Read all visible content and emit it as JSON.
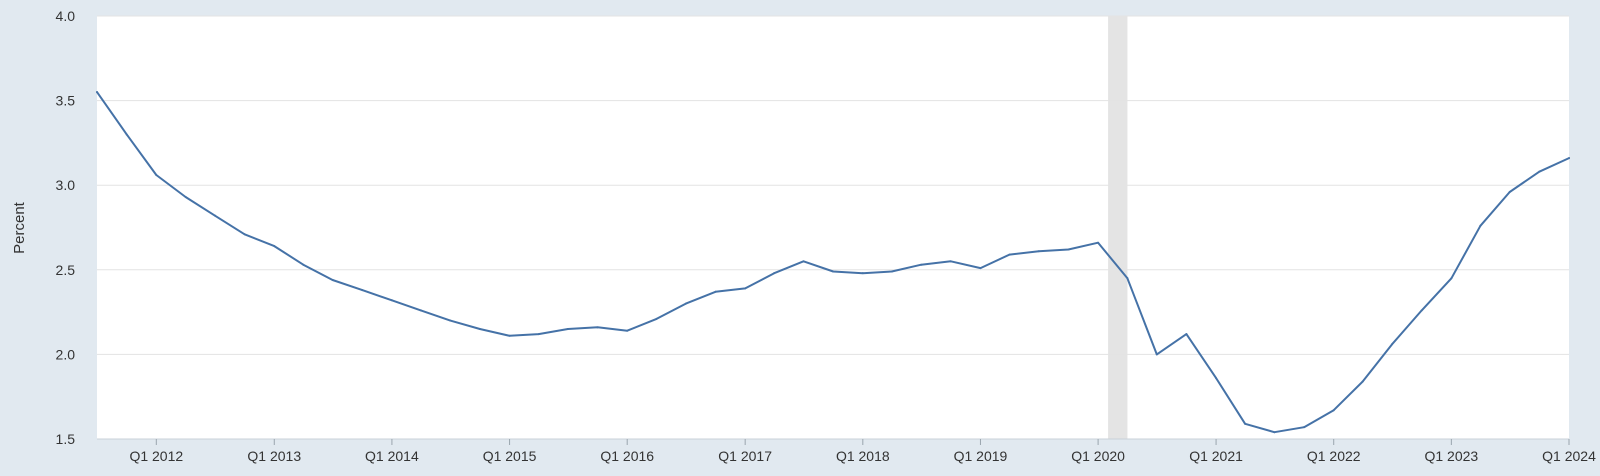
{
  "chart_data": {
    "type": "line",
    "title": "",
    "xlabel": "",
    "ylabel": "Percent",
    "ylim": [
      1.5,
      4.0
    ],
    "y_ticks": [
      1.5,
      2.0,
      2.5,
      3.0,
      3.5,
      4.0
    ],
    "y_tick_labels": [
      "1.5",
      "2.0",
      "2.5",
      "3.0",
      "3.5",
      "4.0"
    ],
    "x_range": [
      "2011-07-01",
      "2024-01-01"
    ],
    "x_ticks": [
      "2012-01-01",
      "2013-01-01",
      "2014-01-01",
      "2015-01-01",
      "2016-01-01",
      "2017-01-01",
      "2018-01-01",
      "2019-01-01",
      "2020-01-01",
      "2021-01-01",
      "2022-01-01",
      "2023-01-01",
      "2024-01-01"
    ],
    "x_tick_labels": [
      "Q1 2012",
      "Q1 2013",
      "Q1 2014",
      "Q1 2015",
      "Q1 2016",
      "Q1 2017",
      "Q1 2018",
      "Q1 2019",
      "Q1 2020",
      "Q1 2021",
      "Q1 2022",
      "Q1 2023",
      "Q1 2024"
    ],
    "grid": true,
    "legend": "none",
    "shaded_periods": [
      [
        "2020-02-01",
        "2020-04-01"
      ]
    ],
    "colors": {
      "line": "#4572a7",
      "plot_background": "#ffffff",
      "page_background": "#e1e9f0",
      "gridline": "#e3e3e3",
      "shading": "#e4e4e4",
      "text": "#333333"
    },
    "series": [
      {
        "x": [
          "2011-07-01",
          "2011-10-01",
          "2012-01-01",
          "2012-04-01",
          "2012-07-01",
          "2012-10-01",
          "2013-01-01",
          "2013-04-01",
          "2013-07-01",
          "2013-10-01",
          "2014-01-01",
          "2014-04-01",
          "2014-07-01",
          "2014-10-01",
          "2015-01-01",
          "2015-04-01",
          "2015-07-01",
          "2015-10-01",
          "2016-01-01",
          "2016-04-01",
          "2016-07-01",
          "2016-10-01",
          "2017-01-01",
          "2017-04-01",
          "2017-07-01",
          "2017-10-01",
          "2018-01-01",
          "2018-04-01",
          "2018-07-01",
          "2018-10-01",
          "2019-01-01",
          "2019-04-01",
          "2019-07-01",
          "2019-10-01",
          "2020-01-01",
          "2020-04-01",
          "2020-07-01",
          "2020-10-01",
          "2021-01-01",
          "2021-04-01",
          "2021-07-01",
          "2021-10-01",
          "2022-01-01",
          "2022-04-01",
          "2022-07-01",
          "2022-10-01",
          "2023-01-01",
          "2023-04-01",
          "2023-07-01",
          "2023-10-01",
          "2024-01-01"
        ],
        "values": [
          3.55,
          3.3,
          3.06,
          2.93,
          2.82,
          2.71,
          2.64,
          2.53,
          2.44,
          2.38,
          2.32,
          2.26,
          2.2,
          2.15,
          2.11,
          2.12,
          2.15,
          2.16,
          2.14,
          2.21,
          2.3,
          2.37,
          2.39,
          2.48,
          2.55,
          2.49,
          2.48,
          2.49,
          2.53,
          2.55,
          2.51,
          2.59,
          2.61,
          2.62,
          2.66,
          2.45,
          2.0,
          2.12,
          1.86,
          1.59,
          1.54,
          1.57,
          1.67,
          1.84,
          2.06,
          2.26,
          2.45,
          2.76,
          2.96,
          3.08,
          3.16
        ]
      }
    ]
  }
}
